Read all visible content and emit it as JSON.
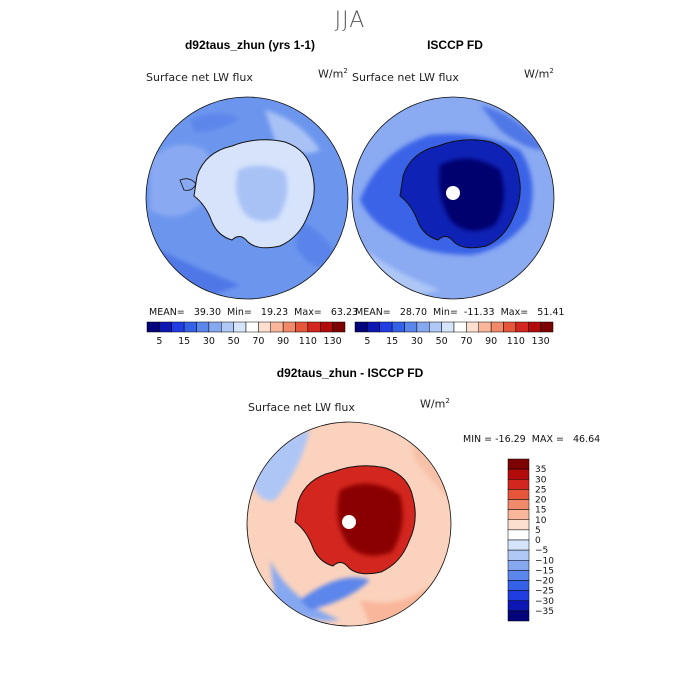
{
  "season": "JJA",
  "panels": [
    {
      "title": "d92taus_zhun (yrs 1-1)",
      "variable": "Surface net LW flux",
      "units": "W/m",
      "units_sup": "2",
      "stats": "MEAN=   39.30  Min=   19.23  Max=   63.23"
    },
    {
      "title": "ISCCP FD",
      "variable": "Surface net LW flux",
      "units": "W/m",
      "units_sup": "2",
      "stats": "MEAN=   28.70  Min=  -11.33  Max=   51.41"
    }
  ],
  "top_colorbar": {
    "colors": [
      "#04047a",
      "#0d17b3",
      "#1f3de0",
      "#3560e8",
      "#5b86ec",
      "#86a8f1",
      "#afc8f6",
      "#d6e4fb",
      "#ffffff",
      "#fddfcf",
      "#f9b69a",
      "#f18a6a",
      "#e5563b",
      "#d3261e",
      "#b30b0b",
      "#7d0202"
    ],
    "labels": [
      "5",
      "15",
      "30",
      "50",
      "70",
      "90",
      "110",
      "130"
    ]
  },
  "diff_panel": {
    "title": "d92taus_zhun - ISCCP FD",
    "variable": "Surface net LW flux",
    "units": "W/m",
    "units_sup": "2",
    "stats": "MIN = -16.29  MAX =   46.64"
  },
  "diff_colorbar": {
    "colors": [
      "#7d0202",
      "#b30b0b",
      "#d3261e",
      "#e5563b",
      "#f18a6a",
      "#f9b69a",
      "#fddfcf",
      "#ffffff",
      "#d6e4fb",
      "#afc8f6",
      "#86a8f1",
      "#5b86ec",
      "#3560e8",
      "#1f3de0",
      "#0d17b3",
      "#04047a"
    ],
    "labels": [
      "35",
      "30",
      "25",
      "20",
      "15",
      "10",
      "5",
      "0",
      "−5",
      "−10",
      "−15",
      "−20",
      "−25",
      "−30",
      "−35"
    ]
  }
}
